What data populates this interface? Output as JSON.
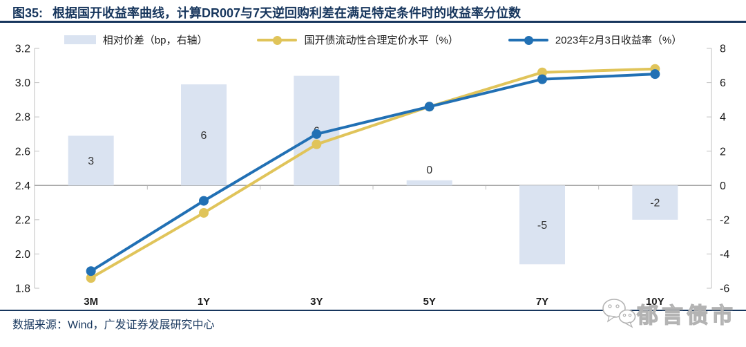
{
  "title": {
    "label": "图35:",
    "text": "根据国开收益率曲线，计算DR007与7天逆回购利差在满足特定条件时的收益率分位数"
  },
  "legend": [
    {
      "label": "相对价差（bp，右轴）",
      "swatch": "bar",
      "color": "#DAE3F1"
    },
    {
      "label": "国开债流动性合理定价水平（%）",
      "swatch": "line-marker",
      "color": "#E0C45A"
    },
    {
      "label": "2023年2月3日收益率（%）",
      "swatch": "line-marker",
      "color": "#2170B4"
    }
  ],
  "chart_data": {
    "type": "combo-bar-line",
    "categories": [
      "3M",
      "1Y",
      "3Y",
      "5Y",
      "7Y",
      "10Y"
    ],
    "bar_series": {
      "name": "相对价差（bp，右轴）",
      "axis": "right",
      "unit": "bp",
      "values": [
        2.9,
        5.9,
        6.4,
        0.3,
        -4.6,
        -2.0
      ],
      "labels": [
        "3",
        "6",
        "6",
        "0",
        "-5",
        "-2"
      ],
      "color": "#DAE3F1"
    },
    "line_series": [
      {
        "name": "国开债流动性合理定价水平（%）",
        "axis": "left",
        "values": [
          1.86,
          2.24,
          2.64,
          2.86,
          3.06,
          3.08
        ],
        "color": "#E0C45A"
      },
      {
        "name": "2023年2月3日收益率（%）",
        "axis": "left",
        "values": [
          1.9,
          2.31,
          2.7,
          2.86,
          3.02,
          3.05
        ],
        "color": "#2170B4"
      }
    ],
    "left_axis": {
      "min": 1.8,
      "max": 3.2,
      "ticks": [
        3.2,
        3.0,
        2.8,
        2.6,
        2.4,
        2.2,
        2.0,
        1.8
      ],
      "tick_labels": [
        "3.2",
        "3.0",
        "2.8",
        "2.6",
        "2.4",
        "2.2",
        "2.0",
        "1.8"
      ]
    },
    "right_axis": {
      "min": -6,
      "max": 8,
      "ticks": [
        8,
        6,
        4,
        2,
        0,
        -2,
        -4,
        -6
      ],
      "tick_labels": [
        "8",
        "6",
        "4",
        "2",
        "0",
        "-2",
        "-4",
        "-6"
      ]
    },
    "grid": "zero-line-only",
    "legend_position": "top"
  },
  "footer": {
    "source": "数据来源：Wind，广发证券发展研究中心"
  },
  "watermark": {
    "text": "郁言债市",
    "icon": "wechat-icon"
  },
  "colors": {
    "title_navy": "#17365D",
    "bar_fill": "#DAE3F1",
    "line_yellow": "#E0C45A",
    "line_blue": "#2170B4"
  }
}
